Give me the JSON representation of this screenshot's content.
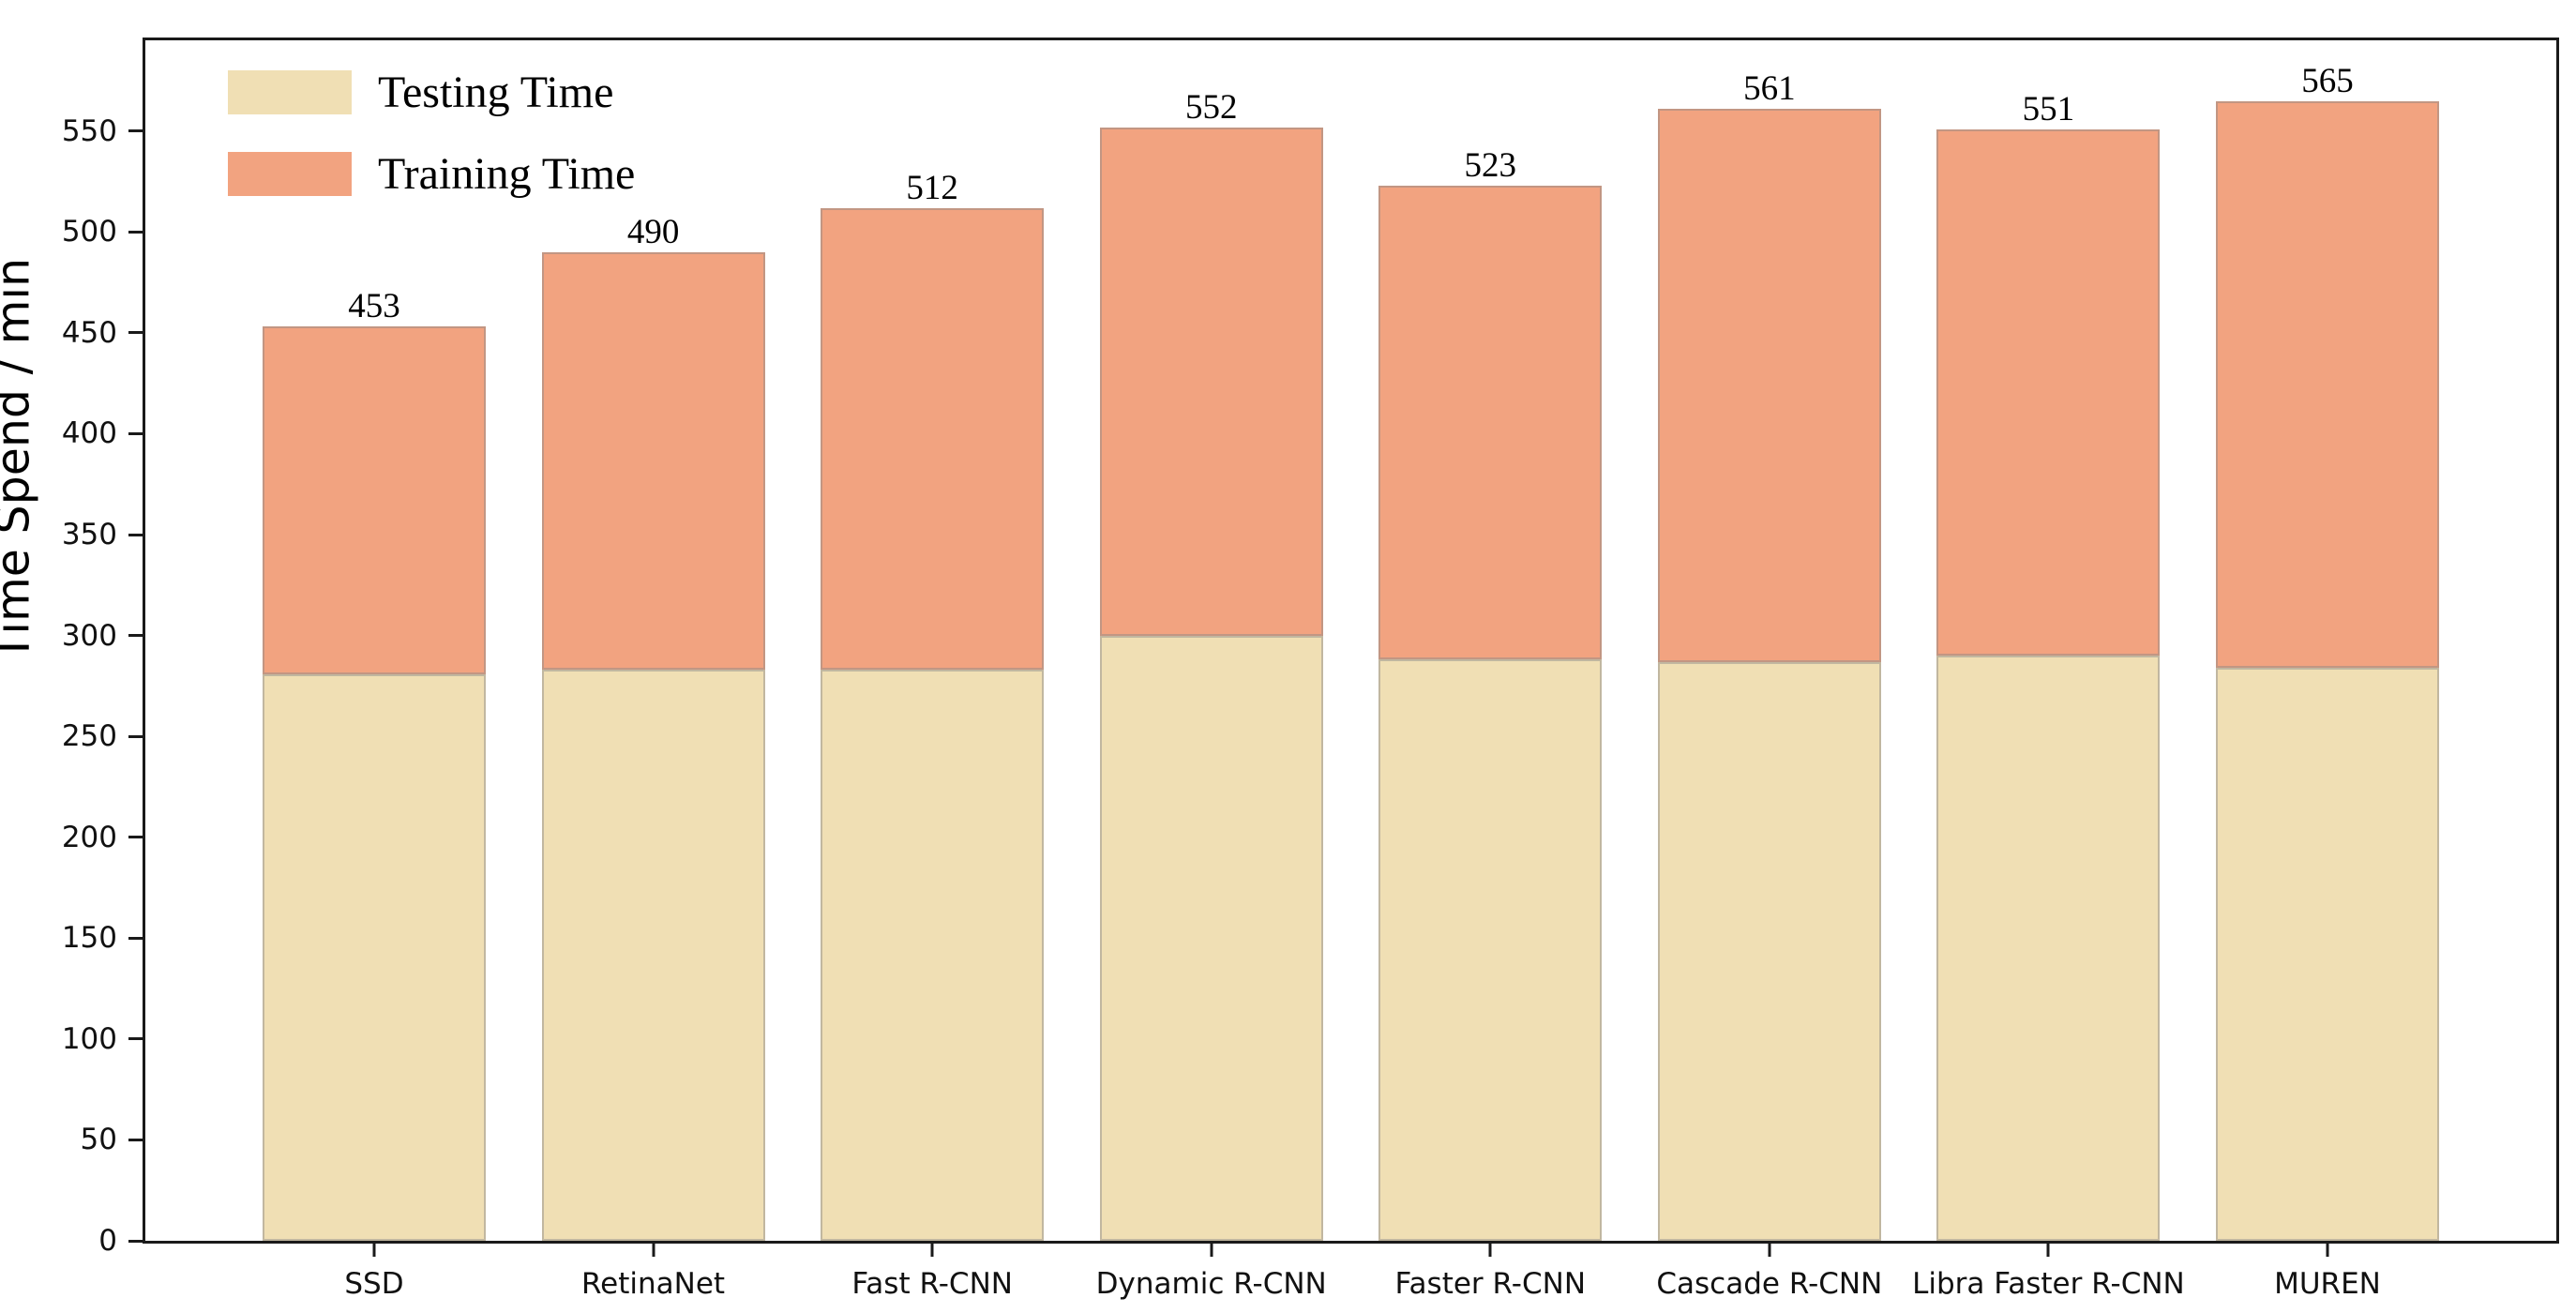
{
  "chart_data": {
    "type": "bar",
    "stacked": true,
    "title": "",
    "xlabel": "",
    "ylabel": "Time Spend / min",
    "categories": [
      "SSD",
      "RetinaNet",
      "Fast R-CNN",
      "Dynamic R-CNN",
      "Faster R-CNN",
      "Cascade R-CNN",
      "Libra Faster R-CNN",
      "MUREN"
    ],
    "series": [
      {
        "name": "Testing Time",
        "color": "#F0DFB4",
        "values": [
          281,
          283,
          283,
          300,
          288,
          287,
          290,
          284
        ]
      },
      {
        "name": "Training Time",
        "color": "#F2A380",
        "values": [
          172,
          207,
          229,
          252,
          235,
          274,
          261,
          281
        ]
      }
    ],
    "totals": [
      453,
      490,
      512,
      552,
      523,
      561,
      551,
      565
    ],
    "total_labels_shown": true,
    "yticks": [
      0,
      50,
      100,
      150,
      200,
      250,
      300,
      350,
      400,
      450,
      500,
      550
    ],
    "ylim": [
      0,
      595
    ],
    "grid": false,
    "legend_position": "upper-left",
    "axis_color": "#1a1a1a"
  }
}
